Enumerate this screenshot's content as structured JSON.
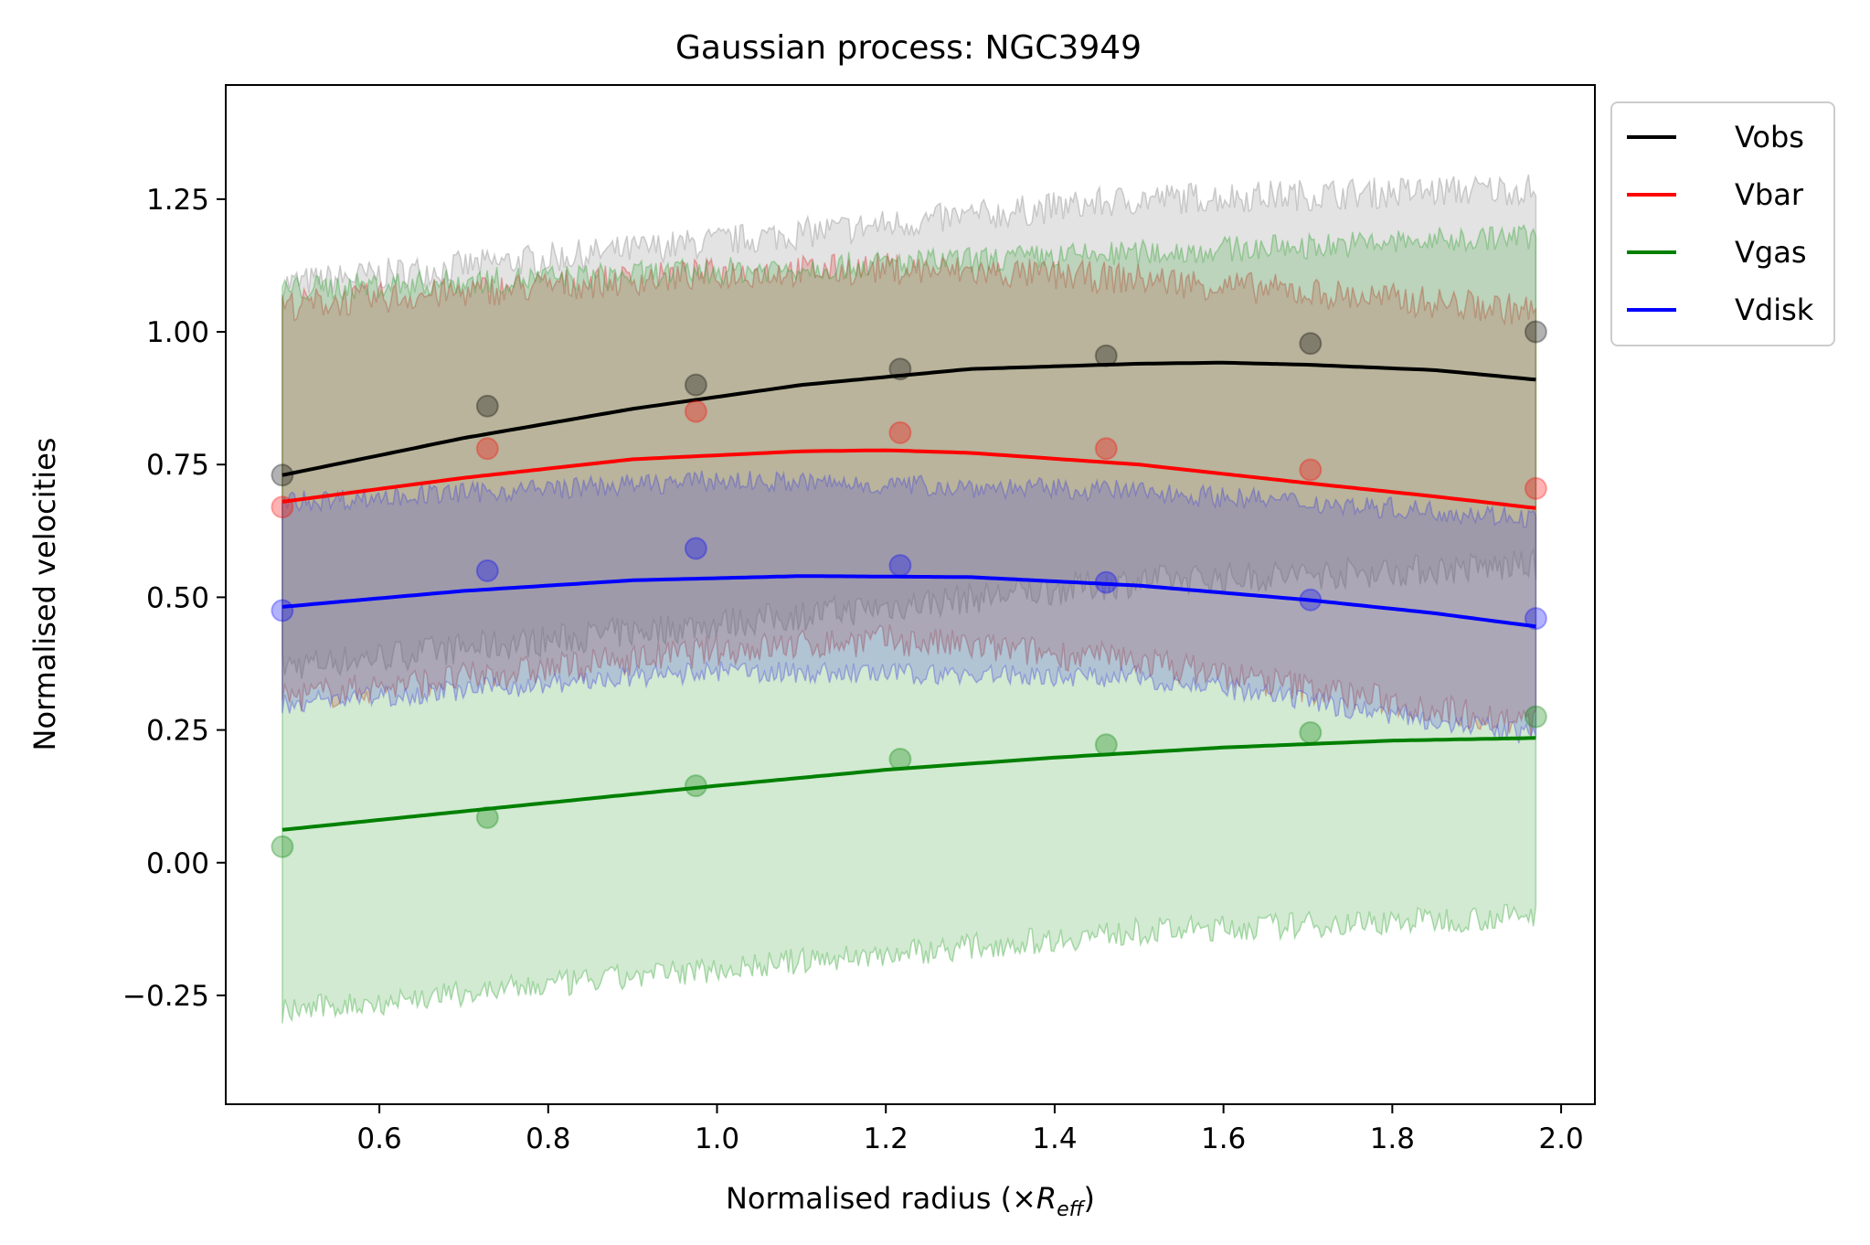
{
  "chart_data": {
    "type": "line",
    "title": "Gaussian process: NGC3949",
    "xlabel_main": "Normalised radius (×",
    "xlabel_var": "R",
    "xlabel_sub": "eff",
    "xlabel_end": ")",
    "ylabel": "Normalised velocities",
    "xlim": [
      0.418,
      2.04
    ],
    "ylim": [
      -0.455,
      1.465
    ],
    "xticks": [
      0.6,
      0.8,
      1.0,
      1.2,
      1.4,
      1.6,
      1.8,
      2.0
    ],
    "xtick_labels": [
      "0.6",
      "0.8",
      "1.0",
      "1.2",
      "1.4",
      "1.6",
      "1.8",
      "2.0"
    ],
    "yticks": [
      -0.25,
      0.0,
      0.25,
      0.5,
      0.75,
      1.0,
      1.25
    ],
    "ytick_labels": [
      "−0.25",
      "0.00",
      "0.25",
      "0.50",
      "0.75",
      "1.00",
      "1.25"
    ],
    "legend_position": "outside-top-right",
    "radii": [
      0.485,
      0.728,
      0.975,
      1.217,
      1.461,
      1.703,
      1.97
    ],
    "series": [
      {
        "name": "Vobs",
        "color": "#000000",
        "band_color": "#808080",
        "points": [
          0.73,
          0.86,
          0.9,
          0.93,
          0.955,
          0.978,
          1.0
        ],
        "mean": {
          "x": [
            0.485,
            0.7,
            0.9,
            1.1,
            1.3,
            1.5,
            1.6,
            1.7,
            1.85,
            1.97
          ],
          "y": [
            0.73,
            0.8,
            0.855,
            0.9,
            0.93,
            0.94,
            0.942,
            0.938,
            0.928,
            0.91
          ]
        },
        "upper": {
          "x": [
            0.485,
            1.0,
            1.5,
            1.97
          ],
          "y": [
            1.09,
            1.17,
            1.25,
            1.27
          ]
        },
        "lower": {
          "x": [
            0.485,
            1.0,
            1.5,
            1.97
          ],
          "y": [
            0.37,
            0.45,
            0.53,
            0.56
          ]
        },
        "noise": 0.03
      },
      {
        "name": "Vbar",
        "color": "#ff0000",
        "band_color": "#d62728",
        "points": [
          0.67,
          0.78,
          0.85,
          0.81,
          0.78,
          0.74,
          0.705
        ],
        "mean": {
          "x": [
            0.485,
            0.7,
            0.9,
            1.1,
            1.2,
            1.3,
            1.5,
            1.7,
            1.85,
            1.97
          ],
          "y": [
            0.68,
            0.725,
            0.76,
            0.775,
            0.777,
            0.772,
            0.75,
            0.715,
            0.69,
            0.668
          ]
        },
        "upper": {
          "x": [
            0.485,
            1.0,
            1.2,
            1.5,
            1.97
          ],
          "y": [
            1.05,
            1.11,
            1.12,
            1.1,
            1.04
          ]
        },
        "lower": {
          "x": [
            0.485,
            1.0,
            1.2,
            1.5,
            1.97
          ],
          "y": [
            0.31,
            0.4,
            0.42,
            0.38,
            0.26
          ]
        },
        "noise": 0.03
      },
      {
        "name": "Vgas",
        "color": "#008000",
        "band_color": "#2ca02c",
        "points": [
          0.03,
          0.085,
          0.145,
          0.195,
          0.222,
          0.245,
          0.275
        ],
        "mean": {
          "x": [
            0.485,
            0.8,
            1.0,
            1.2,
            1.4,
            1.6,
            1.8,
            1.97
          ],
          "y": [
            0.062,
            0.113,
            0.145,
            0.175,
            0.198,
            0.217,
            0.23,
            0.235
          ]
        },
        "upper": {
          "x": [
            0.485,
            1.97
          ],
          "y": [
            1.08,
            1.18
          ]
        },
        "lower": {
          "x": [
            0.485,
            1.0,
            1.5,
            1.97
          ],
          "y": [
            -0.28,
            -0.2,
            -0.13,
            -0.1
          ]
        },
        "noise": 0.025
      },
      {
        "name": "Vdisk",
        "color": "#0000ff",
        "band_color": "#4040e0",
        "points": [
          0.475,
          0.55,
          0.592,
          0.56,
          0.528,
          0.495,
          0.46
        ],
        "mean": {
          "x": [
            0.485,
            0.7,
            0.9,
            1.1,
            1.3,
            1.5,
            1.7,
            1.85,
            1.97
          ],
          "y": [
            0.482,
            0.512,
            0.532,
            0.54,
            0.538,
            0.522,
            0.495,
            0.47,
            0.445
          ]
        },
        "upper": {
          "x": [
            0.485,
            1.0,
            1.5,
            1.97
          ],
          "y": [
            0.68,
            0.72,
            0.7,
            0.65
          ]
        },
        "lower": {
          "x": [
            0.485,
            1.0,
            1.5,
            1.97
          ],
          "y": [
            0.3,
            0.36,
            0.35,
            0.24
          ]
        },
        "noise": 0.02
      }
    ]
  }
}
